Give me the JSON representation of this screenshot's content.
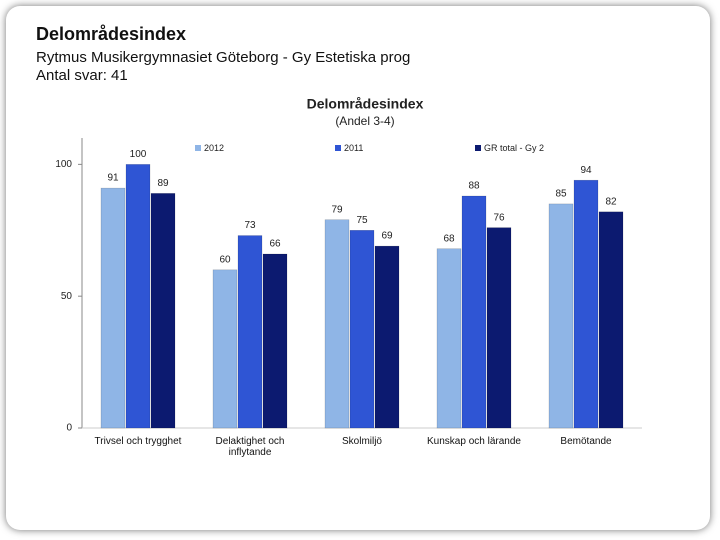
{
  "header": {
    "title": "Delområdesindex",
    "subtitle": "Rytmus Musikergymnasiet Göteborg - Gy Estetiska prog",
    "responses": "Antal svar: 41"
  },
  "chart_data": {
    "type": "bar",
    "title": "Delområdesindex",
    "subtitle": "(Andel 3-4)",
    "categories": [
      "Trivsel och trygghet",
      "Delaktighet och inflytande",
      "Skolmiljö",
      "Kunskap och lärande",
      "Bemötande"
    ],
    "series": [
      {
        "name": "2012",
        "color": "#8fb5e6",
        "values": [
          91,
          60,
          79,
          68,
          85
        ]
      },
      {
        "name": "2011",
        "color": "#2f55d4",
        "values": [
          100,
          73,
          75,
          88,
          94
        ]
      },
      {
        "name": "GR total - Gy 2",
        "color": "#0c1a70",
        "values": [
          89,
          66,
          69,
          76,
          82
        ]
      }
    ],
    "ylim": [
      0,
      110
    ],
    "yticks": [
      0,
      50,
      100
    ]
  }
}
